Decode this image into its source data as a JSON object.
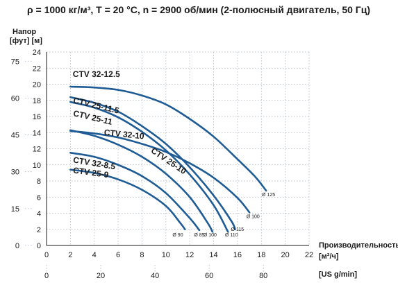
{
  "chart_data": {
    "type": "line",
    "title": "ρ = 1000 кг/м³, T = 20 °C, n = 2900 об/мин (2-полюсный двигатель, 50 Гц)",
    "ylabel_main": "Напор",
    "ylabel_units": "[фут] [м]",
    "xlabel": "Производительность",
    "xlabel_unit": "[м³/ч]",
    "x2label": "[US g/min]",
    "xlim": [
      0,
      22
    ],
    "ylim": [
      0,
      24
    ],
    "x_ticks": [
      0,
      2,
      4,
      6,
      8,
      10,
      12,
      14,
      16,
      18,
      20,
      22
    ],
    "y_ticks": [
      0,
      2,
      4,
      6,
      8,
      10,
      12,
      14,
      16,
      18,
      20,
      22,
      24
    ],
    "y_ft_ticks": [
      0,
      15,
      30,
      45,
      60,
      75
    ],
    "x_us_ticks": [
      0,
      20,
      40,
      60,
      80
    ],
    "grid": true,
    "series": [
      {
        "name": "CTV 32-12.5",
        "diameter": "Ø 125",
        "label_at": [
          2.2,
          20.9
        ],
        "dia_at": [
          18.6,
          6.1
        ],
        "points": [
          [
            2,
            19.7
          ],
          [
            4,
            19.6
          ],
          [
            6,
            19.3
          ],
          [
            8,
            18.6
          ],
          [
            10,
            17.5
          ],
          [
            12,
            15.7
          ],
          [
            14,
            13.5
          ],
          [
            16,
            10.7
          ],
          [
            17.5,
            8.5
          ],
          [
            18.4,
            6.8
          ]
        ]
      },
      {
        "name": "CTV 25-11.5",
        "diameter": "Ø 115",
        "label_at": [
          2.2,
          17.7
        ],
        "dia_at": [
          16.0,
          1.8
        ],
        "points": [
          [
            2,
            18.4
          ],
          [
            4,
            17.7
          ],
          [
            6,
            16.6
          ],
          [
            8,
            14.8
          ],
          [
            10,
            12.6
          ],
          [
            12,
            9.7
          ],
          [
            14,
            6.2
          ],
          [
            15.5,
            3.0
          ],
          [
            15.8,
            2.0
          ]
        ]
      },
      {
        "name": "CTV 25-11",
        "diameter": "Ø 110",
        "label_at": [
          2.2,
          16.1
        ],
        "dia_at": [
          15.5,
          1.1
        ],
        "points": [
          [
            2,
            17.8
          ],
          [
            4,
            17.1
          ],
          [
            6,
            15.9
          ],
          [
            8,
            14.1
          ],
          [
            10,
            11.8
          ],
          [
            12,
            8.8
          ],
          [
            14,
            5.0
          ],
          [
            15.2,
            1.7
          ]
        ]
      },
      {
        "name": "CTV 32-10",
        "diameter": "Ø 100",
        "label_at": [
          4.8,
          13.7
        ],
        "dia_at": [
          17.3,
          3.4
        ],
        "points": [
          [
            2,
            14.2
          ],
          [
            4,
            13.9
          ],
          [
            6,
            13.4
          ],
          [
            8,
            12.6
          ],
          [
            10,
            11.6
          ],
          [
            12,
            10.2
          ],
          [
            14,
            8.4
          ],
          [
            16,
            5.9
          ],
          [
            17.0,
            4.1
          ]
        ]
      },
      {
        "name": "CTV 25-10",
        "diameter": "Ø 100",
        "label_at": [
          8.7,
          11.6
        ],
        "dia_at": [
          13.7,
          1.1
        ],
        "points": [
          [
            2,
            14.3
          ],
          [
            4,
            13.6
          ],
          [
            6,
            12.5
          ],
          [
            8,
            11.0
          ],
          [
            10,
            8.9
          ],
          [
            12,
            6.0
          ],
          [
            13.5,
            2.8
          ],
          [
            13.9,
            1.7
          ]
        ]
      },
      {
        "name": "CTV 32-8.5",
        "diameter": "Ø 85",
        "label_at": [
          2.2,
          10.3
        ],
        "dia_at": [
          12.8,
          1.1
        ],
        "points": [
          [
            2,
            11.5
          ],
          [
            4,
            11.0
          ],
          [
            6,
            10.0
          ],
          [
            8,
            8.6
          ],
          [
            10,
            6.5
          ],
          [
            12,
            3.4
          ],
          [
            12.8,
            1.9
          ]
        ]
      },
      {
        "name": "CTV 25-9",
        "diameter": "Ø 90",
        "label_at": [
          2.2,
          9.0
        ],
        "dia_at": [
          11.0,
          1.1
        ],
        "points": [
          [
            2,
            9.4
          ],
          [
            4,
            9.0
          ],
          [
            6,
            8.2
          ],
          [
            8,
            6.9
          ],
          [
            10,
            4.9
          ],
          [
            11.2,
            2.8
          ],
          [
            11.6,
            2.0
          ]
        ]
      }
    ]
  }
}
